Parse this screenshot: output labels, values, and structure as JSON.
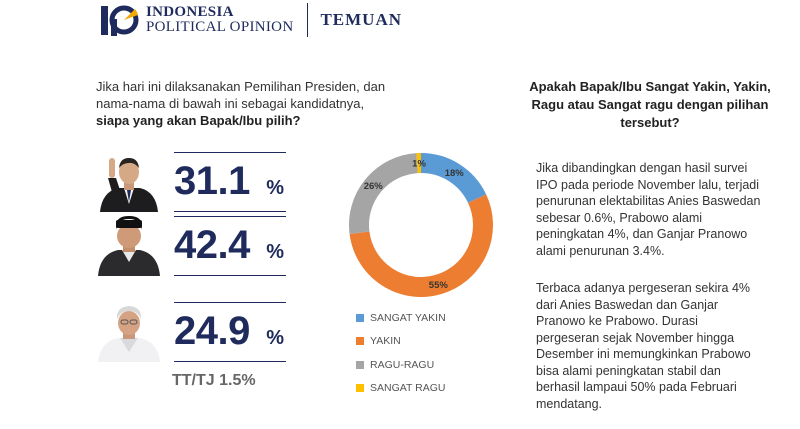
{
  "header": {
    "logo_line1": "INDONESIA",
    "logo_line2": "POLITICAL OPINION",
    "title": "TEMUAN"
  },
  "question": {
    "text": "Jika hari ini dilaksanakan Pemilihan Presiden, dan nama-nama di bawah ini sebagai kandidatnya, ",
    "bold": "siapa yang akan Bapak/Ibu pilih?"
  },
  "candidates": [
    {
      "value": "31.1",
      "sign": "%"
    },
    {
      "value": "42.4",
      "sign": "%"
    },
    {
      "value": "24.9",
      "sign": "%"
    }
  ],
  "ttj": "TT/TJ 1.5%",
  "chart_data": {
    "type": "pie",
    "style": "donut",
    "categories": [
      "SANGAT YAKIN",
      "YAKIN",
      "RAGU-RAGU",
      "SANGAT RAGU"
    ],
    "values": [
      18,
      55,
      26,
      1
    ],
    "labels": [
      "18%",
      "55%",
      "26%",
      "1%"
    ],
    "colors": [
      "#5b9bd5",
      "#ed7d31",
      "#a5a5a5",
      "#ffc000"
    ],
    "legend_position": "bottom"
  },
  "right": {
    "question": "Apakah Bapak/Ibu Sangat Yakin, Yakin, Ragu atau Sangat ragu dengan pilihan tersebut?",
    "para1": "Jika dibandingkan dengan hasil survei IPO pada periode November lalu, terjadi penurunan elektabilitas Anies Baswedan sebesar 0.6%, Prabowo alami peningkatan 4%, dan Ganjar Pranowo alami penurunan 3.4%.",
    "para2": "Terbaca adanya pergeseran sekira 4% dari Anies Baswedan dan Ganjar Pranowo ke Prabowo. Durasi pergeseran sejak November hingga Desember ini memungkinkan Prabowo bisa alami peningkatan stabil dan berhasil lampaui 50% pada Februari mendatang."
  }
}
